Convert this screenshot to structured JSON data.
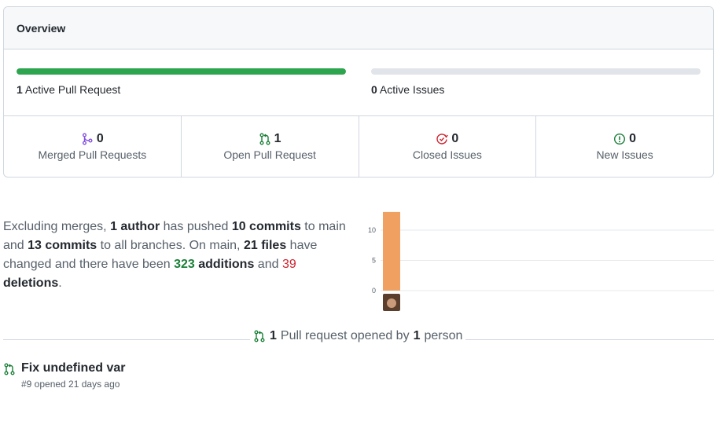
{
  "overview": {
    "title": "Overview",
    "active_pr": {
      "count": "1",
      "label": "Active Pull Request",
      "progress_fraction": 1.0
    },
    "active_issues": {
      "count": "0",
      "label": "Active Issues",
      "progress_fraction": 0.0
    },
    "stats": [
      {
        "count": "0",
        "label": "Merged Pull Requests",
        "icon": "git-merge-icon",
        "color": "#8250df"
      },
      {
        "count": "1",
        "label": "Open Pull Request",
        "icon": "git-pull-request-icon",
        "color": "#1a7f37"
      },
      {
        "count": "0",
        "label": "Closed Issues",
        "icon": "issue-closed-icon",
        "color": "#cf222e"
      },
      {
        "count": "0",
        "label": "New Issues",
        "icon": "issue-opened-icon",
        "color": "#1a7f37"
      }
    ]
  },
  "summary": {
    "p1": "Excluding merges, ",
    "authors": "1 author",
    "p2": " has pushed ",
    "commits_main": "10 commits",
    "p3": " to main and ",
    "commits_all": "13 commits",
    "p4": " to all branches. On main, ",
    "files": "21 files",
    "p5": " have changed and there have been ",
    "additions_num": "323",
    "additions_word": " additions",
    "p6": " and ",
    "deletions_num": "39",
    "deletions_word": " deletions",
    "p7": "."
  },
  "chart_data": {
    "type": "bar",
    "categories": [
      "author"
    ],
    "values": [
      13
    ],
    "yticks": [
      "0",
      "5",
      "10"
    ],
    "ylim": [
      0,
      13
    ],
    "bar_color": "#f0a060",
    "grid": true
  },
  "pr_summary": {
    "count": "1",
    "text1": "Pull request opened by",
    "people": "1",
    "text2": "person",
    "icon": "git-pull-request-icon"
  },
  "pull_requests": [
    {
      "title": "Fix undefined var",
      "meta": "#9 opened 21 days ago",
      "icon": "git-pull-request-icon"
    }
  ],
  "colors": {
    "green": "#2da44e",
    "track": "#e1e4e8",
    "border": "#d0d7de",
    "purple": "#8250df",
    "red": "#cf222e"
  }
}
